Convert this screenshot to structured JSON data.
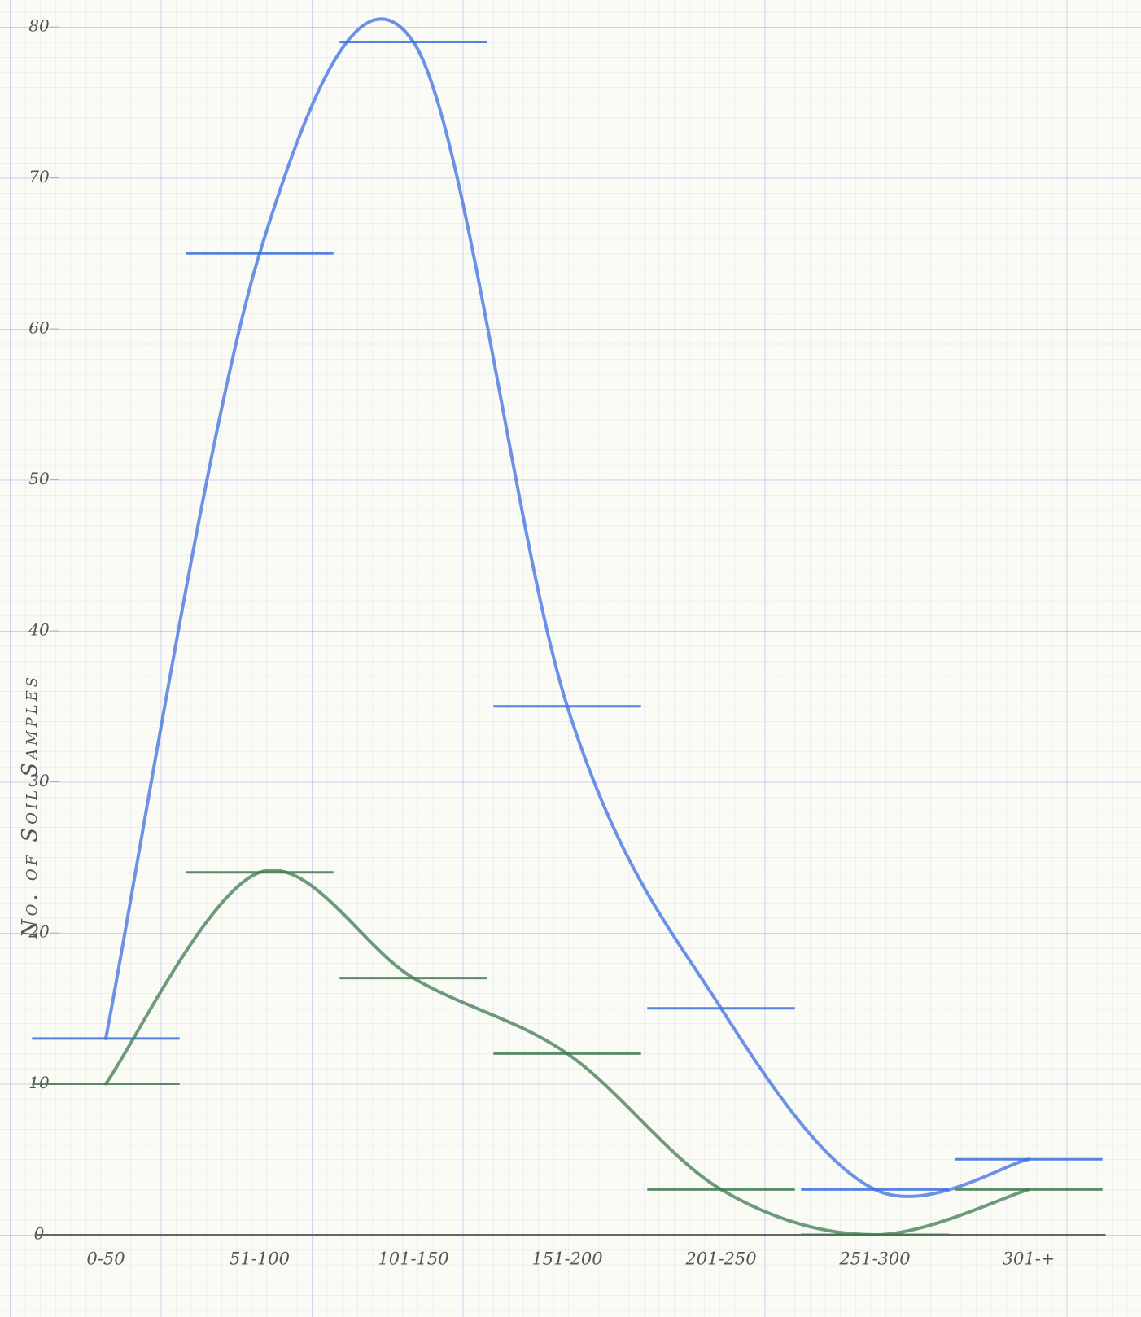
{
  "chart_data": {
    "type": "line",
    "y_label": "No. of Soil Samples",
    "categories": [
      "0-50",
      "51-100",
      "101-150",
      "151-200",
      "201-250",
      "251-300",
      "301-+"
    ],
    "series": [
      {
        "color": "#3c6fe0",
        "values": [
          13,
          65,
          79,
          35,
          15,
          3,
          5
        ]
      },
      {
        "color": "#3f7a50",
        "values": [
          10,
          24,
          17,
          12,
          3,
          0,
          3
        ]
      }
    ],
    "ylim": [
      0,
      80
    ],
    "yticks": [
      0,
      10,
      20,
      30,
      40,
      50,
      60,
      70,
      80
    ]
  }
}
